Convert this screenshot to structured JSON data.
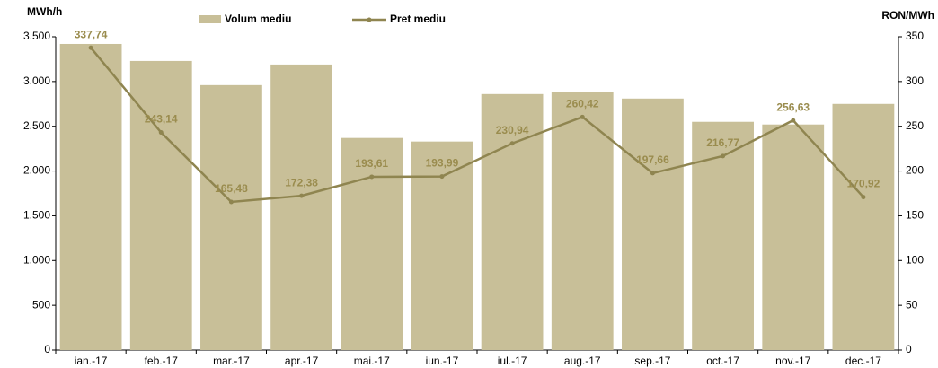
{
  "chart_data": {
    "type": "bar-line",
    "y_label": "MWh/h",
    "y2_label": "RON/MWh",
    "categories": [
      "ian.-17",
      "feb.-17",
      "mar.-17",
      "apr.-17",
      "mai.-17",
      "iun.-17",
      "iul.-17",
      "aug.-17",
      "sep.-17",
      "oct.-17",
      "nov.-17",
      "dec.-17"
    ],
    "series": [
      {
        "name": "Volum mediu",
        "type": "bar",
        "color": "#c8bf98",
        "axis": "y",
        "values": [
          3420,
          3230,
          2960,
          3190,
          2370,
          2330,
          2860,
          2880,
          2810,
          2550,
          2520,
          2750
        ]
      },
      {
        "name": "Pret mediu",
        "type": "line",
        "color": "#8f8550",
        "axis": "y2",
        "values": [
          337.74,
          243.14,
          165.48,
          172.38,
          193.61,
          193.99,
          230.94,
          260.42,
          197.66,
          216.77,
          256.63,
          170.92
        ],
        "value_labels": [
          "337,74",
          "243,14",
          "165,48",
          "172,38",
          "193,61",
          "193,99",
          "230,94",
          "260,42",
          "197,66",
          "216,77",
          "256,63",
          "170,92"
        ]
      }
    ],
    "ylim": [
      0,
      3500
    ],
    "yticks": [
      0,
      500,
      {
        "value": 1000,
        "label": "1.000"
      },
      {
        "value": 1500,
        "label": "1.500"
      },
      {
        "value": 2000,
        "label": "2.000"
      },
      {
        "value": 2500,
        "label": "2.500"
      },
      {
        "value": 3000,
        "label": "3.000"
      },
      {
        "value": 3500,
        "label": "3.500"
      }
    ],
    "y2lim": [
      0,
      350
    ],
    "y2ticks": [
      0,
      50,
      100,
      150,
      200,
      250,
      300,
      350
    ],
    "label_color": "#9a8c4e"
  }
}
